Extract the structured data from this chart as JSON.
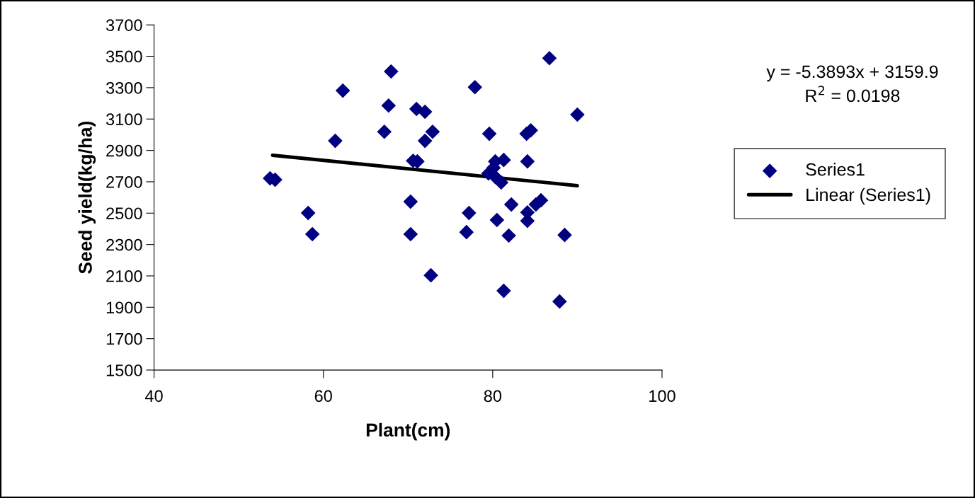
{
  "chart_data": {
    "type": "scatter",
    "xlabel": "Plant(cm)",
    "ylabel": "Seed yield(kg/ha)",
    "xlim": [
      40,
      100
    ],
    "xticks": [
      40,
      60,
      80,
      100
    ],
    "ylim": [
      1500,
      3700
    ],
    "yticks": [
      1500,
      1700,
      1900,
      2100,
      2300,
      2500,
      2700,
      2900,
      3100,
      3300,
      3500,
      3700
    ],
    "grid": false,
    "legend": "right",
    "annotations": [
      "y = -5.3893x + 3159.9",
      "R$^{2}$ = 0.0198"
    ],
    "series": [
      {
        "name": "Series1",
        "color": "#000080",
        "marker": "diamond",
        "x": [
          53.7,
          54.3,
          58.2,
          58.7,
          61.4,
          62.3,
          67.2,
          67.7,
          68.0,
          71.0,
          72.0,
          72.0,
          72.9,
          70.6,
          71.1,
          70.3,
          70.3,
          72.7,
          77.9,
          79.6,
          77.2,
          76.9,
          80.3,
          81.3,
          80.1,
          79.5,
          80.3,
          81.0,
          80.5,
          82.2,
          81.9,
          81.3,
          84.0,
          84.5,
          84.1,
          84.1,
          84.1,
          85.1,
          85.7,
          86.7,
          88.5,
          87.9,
          90.0
        ],
        "values": [
          2722,
          2713,
          2501,
          2366,
          2961,
          3281,
          3019,
          3186,
          3403,
          3164,
          3146,
          2961,
          3019,
          2834,
          2830,
          2573,
          2366,
          2104,
          3303,
          3006,
          2501,
          2379,
          2830,
          2839,
          2789,
          2753,
          2731,
          2695,
          2456,
          2555,
          2357,
          2005,
          3006,
          3028,
          2830,
          2505,
          2451,
          2555,
          2582,
          3488,
          2361,
          1937,
          3128
        ]
      },
      {
        "name": "Linear (Series1)",
        "type": "line",
        "color": "#000000",
        "marker": "none",
        "line_style": "solid",
        "x": [
          54,
          90
        ],
        "values": [
          2869,
          2675
        ]
      }
    ]
  }
}
